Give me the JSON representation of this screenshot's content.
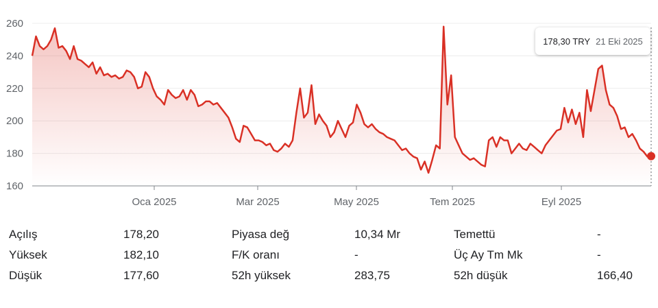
{
  "tooltip": {
    "price": "178,30 TRY",
    "date": "21 Eki 2025"
  },
  "chart_data": {
    "type": "area",
    "title": "",
    "xlabel": "",
    "ylabel": "",
    "ylim": [
      160,
      260
    ],
    "y_ticks": [
      "160",
      "180",
      "200",
      "220",
      "240",
      "260"
    ],
    "x_ticks": [
      "Oca 2025",
      "Mar 2025",
      "May 2025",
      "Tem 2025",
      "Eyl 2025"
    ],
    "color": "#d93025",
    "grid": "horizontal",
    "series": [
      {
        "values": [
          240,
          252,
          246,
          244,
          246,
          250,
          257,
          245,
          246,
          243,
          238,
          246,
          238,
          237,
          235,
          233,
          236,
          229,
          233,
          228,
          229,
          227,
          228,
          226,
          227,
          231,
          230,
          227,
          220,
          221,
          230,
          227,
          220,
          215,
          213,
          210,
          219,
          216,
          214,
          215,
          219,
          213,
          219,
          216,
          209,
          210,
          212,
          212,
          210,
          211,
          208,
          205,
          202,
          196,
          189,
          187,
          197,
          196,
          192,
          188,
          188,
          187,
          185,
          186,
          182,
          181,
          183,
          186,
          184,
          188,
          205,
          220,
          202,
          205,
          222,
          198,
          204,
          200,
          197,
          190,
          193,
          200,
          195,
          190,
          197,
          199,
          210,
          205,
          198,
          196,
          198,
          195,
          193,
          192,
          190,
          189,
          188,
          185,
          182,
          183,
          180,
          178,
          177,
          170,
          175,
          168,
          176,
          185,
          183,
          258,
          210,
          228,
          190,
          185,
          180,
          178,
          176,
          177,
          175,
          173,
          172,
          188,
          190,
          184,
          190,
          188,
          188,
          180,
          183,
          186,
          183,
          182,
          186,
          184,
          182,
          180,
          185,
          188,
          191,
          194,
          195,
          208,
          199,
          207,
          198,
          205,
          190,
          219,
          206,
          219,
          232,
          234,
          219,
          210,
          208,
          203,
          195,
          196,
          190,
          192,
          188,
          183,
          181,
          178,
          178
        ]
      }
    ],
    "x_range": [
      "",
      "21 Eki 2025"
    ],
    "last_value": 178.3
  },
  "stats": [
    [
      {
        "label": "Açılış",
        "value": "178,20"
      },
      {
        "label": "Piyasa değ",
        "value": "10,34 Mr"
      },
      {
        "label": "Temettü",
        "value": "-"
      }
    ],
    [
      {
        "label": "Yüksek",
        "value": "182,10"
      },
      {
        "label": "F/K oranı",
        "value": "-"
      },
      {
        "label": "Üç Ay Tm Mk",
        "value": "-"
      }
    ],
    [
      {
        "label": "Düşük",
        "value": "177,60"
      },
      {
        "label": "52h yüksek",
        "value": "283,75"
      },
      {
        "label": "52h düşük",
        "value": "166,40"
      }
    ]
  ]
}
